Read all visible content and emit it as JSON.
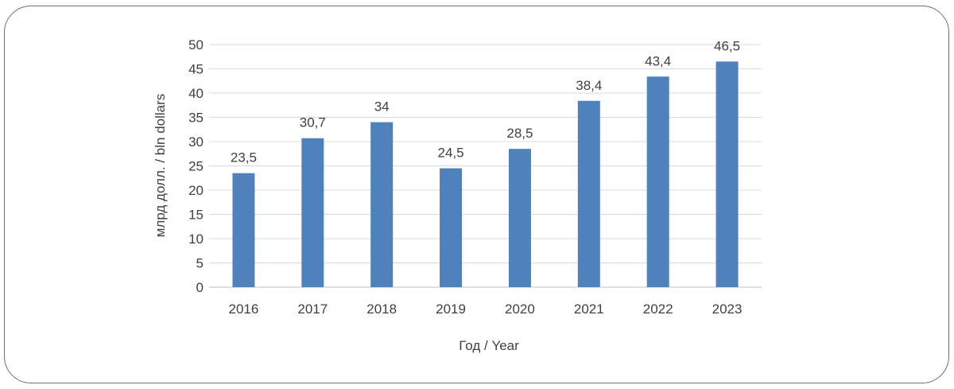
{
  "chart_data": {
    "type": "bar",
    "title": "",
    "xlabel": "Год / Year",
    "ylabel": "млрд долл. / bln dollars",
    "categories": [
      "2016",
      "2017",
      "2018",
      "2019",
      "2020",
      "2021",
      "2022",
      "2023"
    ],
    "values": [
      23.5,
      30.7,
      34,
      24.5,
      28.5,
      38.4,
      43.4,
      46.5
    ],
    "value_labels": [
      "23,5",
      "30,7",
      "34",
      "24,5",
      "28,5",
      "38,4",
      "43,4",
      "46,5"
    ],
    "ylim": [
      0,
      50
    ],
    "y_ticks": [
      "0",
      "5",
      "10",
      "15",
      "20",
      "25",
      "30",
      "35",
      "40",
      "45",
      "50"
    ],
    "grid": true,
    "legend": "none",
    "colors": {
      "bar": "#4f81bd",
      "grid": "#d9d9d9",
      "axis": "#bfbfbf",
      "text": "#404040",
      "frame": "#6f6f6f"
    }
  }
}
